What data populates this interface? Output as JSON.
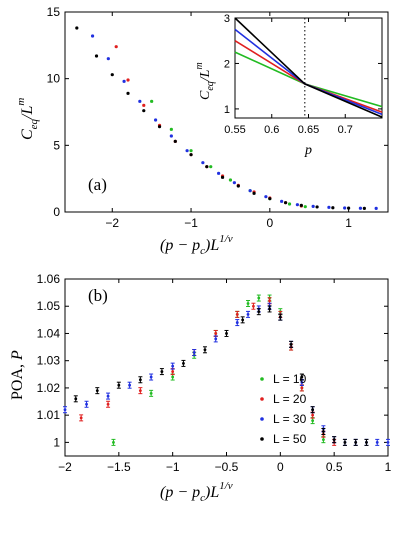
{
  "colors": {
    "L10": "#22bb22",
    "L20": "#e02020",
    "L30": "#2030e0",
    "L50": "#000000"
  },
  "chart_data": [
    {
      "type": "scatter",
      "panel_label": "(a)",
      "xlabel": "(p − p_c)L^{1/ν}",
      "ylabel": "C_eq/L^m",
      "xlim": [
        -2.6,
        1.5
      ],
      "ylim": [
        0,
        15
      ],
      "xticks": [
        "−2",
        "−1",
        "0",
        "1"
      ],
      "yticks": [
        "0",
        "5",
        "10",
        "15"
      ],
      "series": [
        {
          "name": "L = 10",
          "color": "#22bb22",
          "x": [
            -1.5,
            -1.25,
            -1.0,
            -0.75,
            -0.5,
            -0.25,
            0.0,
            0.25,
            0.45
          ],
          "y": [
            8.3,
            6.2,
            4.6,
            3.4,
            2.4,
            1.6,
            1.0,
            0.6,
            0.4
          ]
        },
        {
          "name": "L = 20",
          "color": "#e02020",
          "x": [
            -1.95,
            -1.8,
            -1.6,
            -1.4,
            -1.2,
            -1.0,
            -0.8,
            -0.6,
            -0.4,
            -0.2,
            0.0,
            0.2,
            0.4
          ],
          "y": [
            12.4,
            9.9,
            8.0,
            6.5,
            5.3,
            4.3,
            3.4,
            2.7,
            2.0,
            1.5,
            1.05,
            0.7,
            0.45
          ]
        },
        {
          "name": "L = 30",
          "color": "#2030e0",
          "x": [
            -2.25,
            -2.05,
            -1.85,
            -1.65,
            -1.45,
            -1.25,
            -1.05,
            -0.85,
            -0.65,
            -0.45,
            -0.25,
            -0.05,
            0.15,
            0.35,
            0.55,
            0.75,
            0.95,
            1.15,
            1.35
          ],
          "y": [
            13.2,
            11.5,
            9.8,
            8.3,
            6.9,
            5.7,
            4.6,
            3.7,
            2.9,
            2.2,
            1.6,
            1.15,
            0.8,
            0.55,
            0.42,
            0.35,
            0.3,
            0.28,
            0.27
          ]
        },
        {
          "name": "L = 50",
          "color": "#000000",
          "x": [
            -2.45,
            -2.2,
            -2.0,
            -1.8,
            -1.6,
            -1.4,
            -1.2,
            -1.0,
            -0.8,
            -0.6,
            -0.4,
            -0.2,
            0.0,
            0.2,
            0.4,
            0.6,
            0.8,
            1.0,
            1.2
          ],
          "y": [
            13.8,
            11.7,
            10.3,
            8.9,
            7.6,
            6.4,
            5.3,
            4.3,
            3.4,
            2.6,
            1.95,
            1.4,
            1.0,
            0.7,
            0.5,
            0.38,
            0.32,
            0.29,
            0.27
          ]
        }
      ]
    },
    {
      "type": "line",
      "inset": true,
      "xlabel": "p",
      "ylabel": "C_eq/L^m",
      "xlim": [
        0.55,
        0.75
      ],
      "ylim": [
        0.8,
        3.0
      ],
      "xticks": [
        "0.55",
        "0.6",
        "0.65",
        "0.7"
      ],
      "yticks": [
        "1",
        "2",
        "3"
      ],
      "vline": 0.645,
      "series": [
        {
          "name": "L = 10",
          "color": "#22bb22",
          "x": [
            0.55,
            0.645,
            0.75
          ],
          "y": [
            2.25,
            1.55,
            1.05
          ]
        },
        {
          "name": "L = 20",
          "color": "#e02020",
          "x": [
            0.55,
            0.645,
            0.75
          ],
          "y": [
            2.5,
            1.55,
            0.93
          ]
        },
        {
          "name": "L = 30",
          "color": "#2030e0",
          "x": [
            0.55,
            0.645,
            0.75
          ],
          "y": [
            2.75,
            1.55,
            0.88
          ]
        },
        {
          "name": "L = 50",
          "color": "#000000",
          "x": [
            0.55,
            0.645,
            0.75
          ],
          "y": [
            3.0,
            1.55,
            0.82
          ]
        }
      ]
    },
    {
      "type": "scatter",
      "panel_label": "(b)",
      "xlabel": "(p − p_c)L^{1/ν}",
      "ylabel": "POA, P",
      "xlim": [
        -2,
        1
      ],
      "ylim": [
        0.995,
        1.06
      ],
      "xticks": [
        "−2",
        "−1.5",
        "−1",
        "−0.5",
        "0",
        "0.5",
        "1"
      ],
      "yticks": [
        "1",
        "1.01",
        "1.02",
        "1.03",
        "1.04",
        "1.05",
        "1.06"
      ],
      "legend": {
        "placement": "right",
        "entries": [
          "L = 10",
          "L = 20",
          "L = 30",
          "L = 50"
        ]
      },
      "series": [
        {
          "name": "L = 10",
          "color": "#22bb22",
          "x": [
            -1.55,
            -1.2,
            -1.0,
            -0.8,
            -0.6,
            -0.4,
            -0.3,
            -0.2,
            -0.1,
            0.0,
            0.1,
            0.2,
            0.3,
            0.4
          ],
          "y": [
            1.0,
            1.018,
            1.024,
            1.032,
            1.04,
            1.047,
            1.051,
            1.053,
            1.053,
            1.048,
            1.035,
            1.02,
            1.008,
            1.001
          ]
        },
        {
          "name": "L = 20",
          "color": "#e02020",
          "x": [
            -1.85,
            -1.6,
            -1.3,
            -1.0,
            -0.8,
            -0.6,
            -0.4,
            -0.25,
            -0.1,
            0.0,
            0.1,
            0.2,
            0.3,
            0.4,
            0.5
          ],
          "y": [
            1.009,
            1.014,
            1.019,
            1.026,
            1.033,
            1.04,
            1.047,
            1.05,
            1.052,
            1.047,
            1.035,
            1.02,
            1.01,
            1.003,
            1.0
          ]
        },
        {
          "name": "L = 30",
          "color": "#2030e0",
          "x": [
            -2.0,
            -1.8,
            -1.6,
            -1.4,
            -1.2,
            -1.0,
            -0.8,
            -0.6,
            -0.4,
            -0.3,
            -0.2,
            -0.1,
            0.0,
            0.1,
            0.2,
            0.3,
            0.4,
            0.5,
            0.6,
            0.7,
            0.8,
            0.9,
            1.0
          ],
          "y": [
            1.012,
            1.014,
            1.017,
            1.021,
            1.024,
            1.028,
            1.033,
            1.038,
            1.044,
            1.047,
            1.049,
            1.05,
            1.046,
            1.036,
            1.022,
            1.012,
            1.005,
            1.001,
            1.0,
            1.0,
            1.0,
            1.0,
            1.0
          ]
        },
        {
          "name": "L = 50",
          "color": "#000000",
          "x": [
            -1.9,
            -1.7,
            -1.5,
            -1.3,
            -1.1,
            -0.9,
            -0.7,
            -0.5,
            -0.35,
            -0.2,
            -0.1,
            0.0,
            0.1,
            0.2,
            0.3,
            0.4,
            0.5,
            0.6,
            0.7,
            0.8
          ],
          "y": [
            1.016,
            1.019,
            1.021,
            1.023,
            1.026,
            1.029,
            1.034,
            1.04,
            1.045,
            1.048,
            1.049,
            1.046,
            1.036,
            1.024,
            1.012,
            1.004,
            1.001,
            1.0,
            1.0,
            1.0
          ]
        }
      ]
    }
  ]
}
